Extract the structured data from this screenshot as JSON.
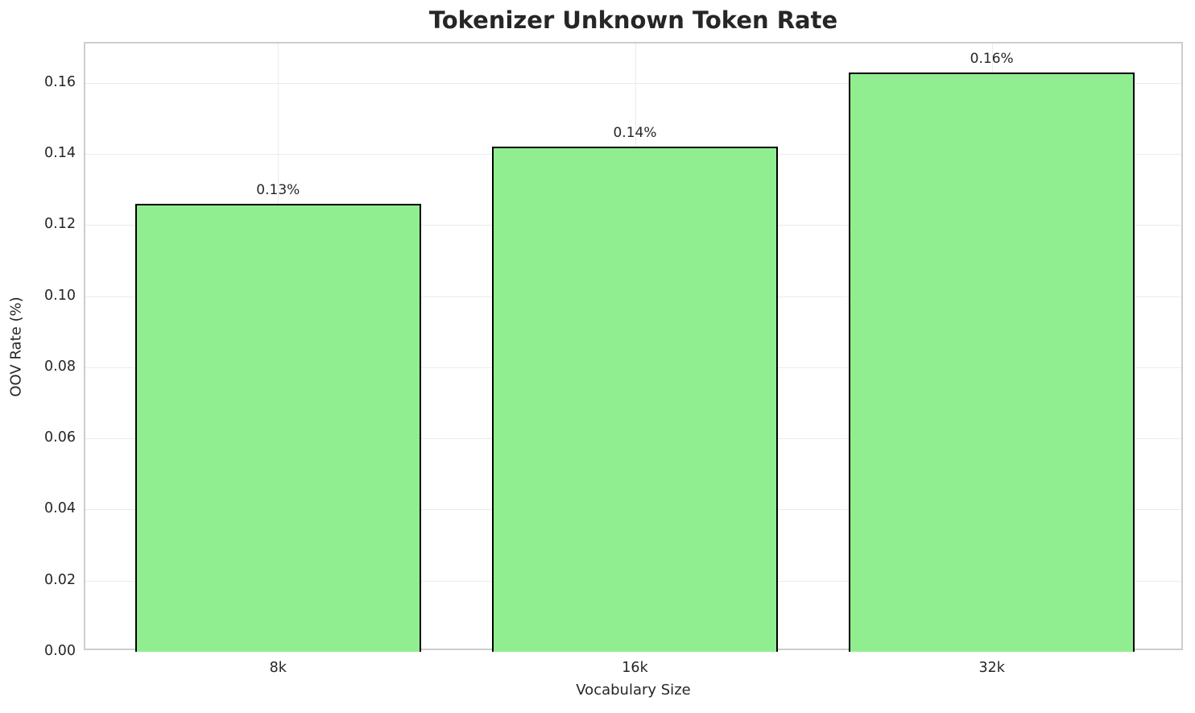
{
  "chart_data": {
    "type": "bar",
    "title": "Tokenizer Unknown Token Rate",
    "xlabel": "Vocabulary Size",
    "ylabel": "OOV Rate (%)",
    "categories": [
      "8k",
      "16k",
      "32k"
    ],
    "values": [
      0.126,
      0.142,
      0.163
    ],
    "bar_labels": [
      "0.13%",
      "0.14%",
      "0.16%"
    ],
    "yticks": [
      0.0,
      0.02,
      0.04,
      0.06,
      0.08,
      0.1,
      0.12,
      0.14,
      0.16
    ],
    "ytick_labels": [
      "0.00",
      "0.02",
      "0.04",
      "0.06",
      "0.08",
      "0.10",
      "0.12",
      "0.14",
      "0.16"
    ],
    "ylim": [
      0,
      0.1711
    ],
    "grid": true,
    "legend": "none",
    "bar_color": "#90EE90",
    "bar_edge_color": "#000000",
    "grid_color": "#ebebeb",
    "spine_color": "#cdcdcd",
    "text_color": "#262626"
  }
}
